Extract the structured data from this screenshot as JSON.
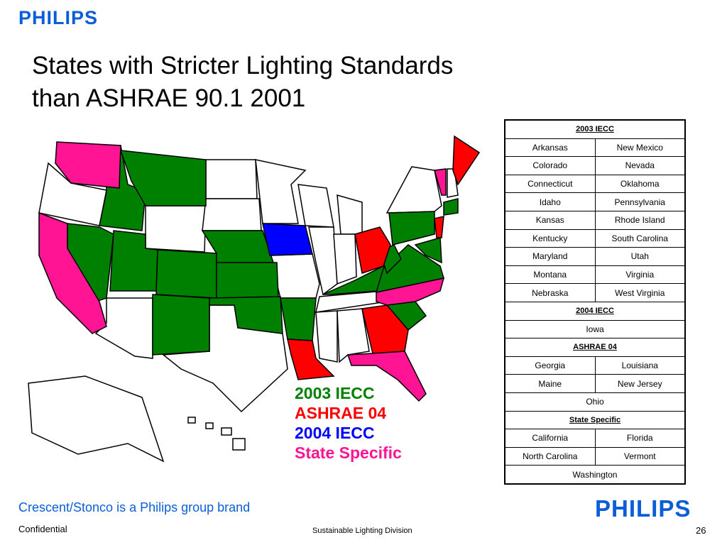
{
  "header": {
    "logo": "PHILIPS",
    "title": [
      "States with Stricter Lighting Standards",
      "than ASHRAE 90.1 2001"
    ]
  },
  "map": {
    "legend": [
      {
        "label": "2003 IECC",
        "color": "#008000"
      },
      {
        "label": "ASHRAE 04",
        "color": "#ff0000"
      },
      {
        "label": "2004 IECC",
        "color": "#0000ff"
      },
      {
        "label": "State Specific",
        "color": "#ff1493"
      }
    ]
  },
  "table": {
    "sections": [
      {
        "heading": "2003 IECC",
        "rows": [
          [
            "Arkansas",
            "New Mexico"
          ],
          [
            "Colorado",
            "Nevada"
          ],
          [
            "Connecticut",
            "Oklahoma"
          ],
          [
            "Idaho",
            "Pennsylvania"
          ],
          [
            "Kansas",
            "Rhode Island"
          ],
          [
            "Kentucky",
            "South Carolina"
          ],
          [
            "Maryland",
            "Utah"
          ],
          [
            "Montana",
            "Virginia"
          ],
          [
            "Nebraska",
            "West Virginia"
          ]
        ]
      },
      {
        "heading": "2004 IECC",
        "rows": [
          [
            "Iowa"
          ]
        ]
      },
      {
        "heading": "ASHRAE 04",
        "rows": [
          [
            "Georgia",
            "Louisiana"
          ],
          [
            "Maine",
            "New Jersey"
          ],
          [
            "Ohio"
          ]
        ]
      },
      {
        "heading": "State Specific",
        "rows": [
          [
            "California",
            "Florida"
          ],
          [
            "North Carolina",
            "Vermont"
          ],
          [
            "Washington"
          ]
        ]
      }
    ]
  },
  "footer": {
    "brand": "Crescent/Stonco is a Philips group brand",
    "logo": "PHILIPS",
    "left": "Confidential",
    "center": "Sustainable Lighting Division",
    "page": "26"
  }
}
